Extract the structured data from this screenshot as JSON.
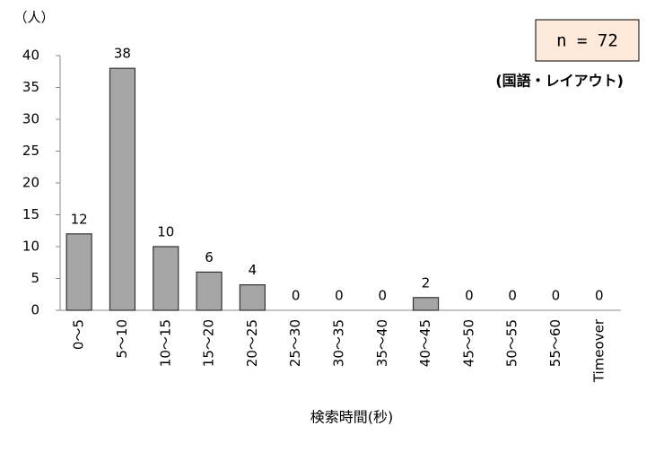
{
  "chart_data": {
    "type": "bar",
    "y_unit": "（人）",
    "note": "n = 72",
    "subtitle": "(国語・レイアウト)",
    "x_label": "検索時間(秒)",
    "categories": [
      "0～5",
      "5～10",
      "10～15",
      "15～20",
      "20～25",
      "25～30",
      "30～35",
      "35～40",
      "40～45",
      "45～50",
      "50～55",
      "55～60",
      "Timeover"
    ],
    "values": [
      12,
      38,
      10,
      6,
      4,
      0,
      0,
      0,
      2,
      0,
      0,
      0,
      0
    ],
    "color": "#a6a6a6",
    "ylim": [
      0,
      40
    ],
    "yticks": [
      0,
      5,
      10,
      15,
      20,
      25,
      30,
      35,
      40
    ],
    "grid": false
  }
}
